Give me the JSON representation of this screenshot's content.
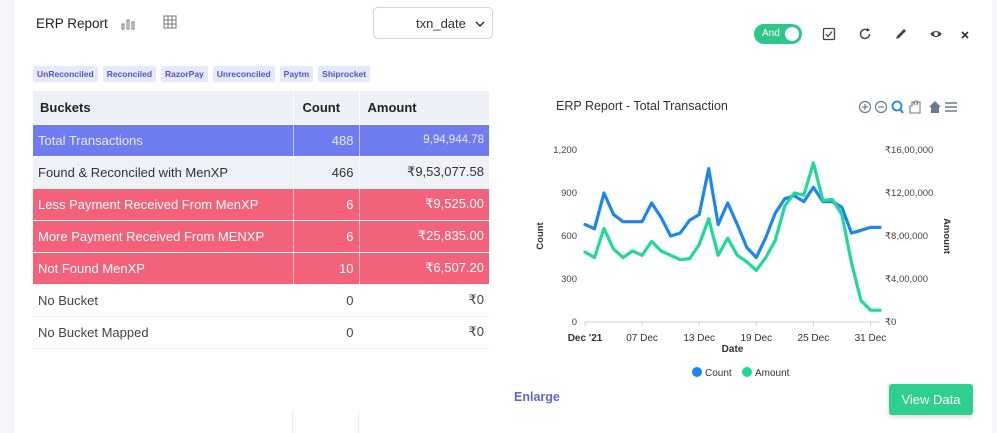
{
  "header": {
    "title": "ERP Report",
    "date_field": "txn_date",
    "toggle_label": "And"
  },
  "tags": [
    "UnReconciled",
    "Reconciled",
    "RazorPay",
    "Unreconciled",
    "Paytm",
    "Shiprocket"
  ],
  "table": {
    "headers": [
      "Buckets",
      "Count",
      "Amount"
    ],
    "rows": [
      {
        "label": "Total  Transactions",
        "count": "488",
        "amount": "9,94,944.78",
        "style": "total"
      },
      {
        "label": "Found & Reconciled with MenXP",
        "count": "466",
        "amount": "₹9,53,077.58",
        "style": "found"
      },
      {
        "label": "Less Payment Received From MenXP",
        "count": "6",
        "amount": "₹9,525.00",
        "style": "red"
      },
      {
        "label": "More Payment Received From MENXP",
        "count": "6",
        "amount": "₹25,835.00",
        "style": "red"
      },
      {
        "label": "Not Found MenXP",
        "count": "10",
        "amount": "₹6,507.20",
        "style": "red"
      },
      {
        "label": "No Bucket",
        "count": "0",
        "amount": "₹0",
        "style": "plain"
      },
      {
        "label": "No Bucket Mapped",
        "count": "0",
        "amount": "₹0",
        "style": "plain"
      }
    ]
  },
  "actions": {
    "enlarge": "Enlarge",
    "view_data": "View Data"
  },
  "chart_data": {
    "type": "line",
    "title": "ERP Report - Total Transaction",
    "xlabel": "Date",
    "ylabel": "Count",
    "y2label": "Amount",
    "x_ticks": [
      "Dec '21",
      "07 Dec",
      "13 Dec",
      "19 Dec",
      "25 Dec",
      "31 Dec"
    ],
    "y_ticks": [
      "0",
      "300",
      "600",
      "900",
      "1,200"
    ],
    "y2_ticks": [
      "₹0",
      "₹4,00,000",
      "₹8,00,000",
      "₹12,00,000",
      "₹16,00,000"
    ],
    "ylim": [
      0,
      1200
    ],
    "y2lim": [
      0,
      1600000
    ],
    "x_days": [
      1,
      2,
      3,
      4,
      5,
      6,
      7,
      8,
      9,
      10,
      11,
      12,
      13,
      14,
      15,
      16,
      17,
      18,
      19,
      20,
      21,
      22,
      23,
      24,
      25,
      26,
      27,
      28,
      29,
      30,
      31,
      32
    ],
    "series": [
      {
        "name": "Count",
        "axis": "left",
        "color": "#1c86ee",
        "values": [
          680,
          650,
          900,
          750,
          700,
          700,
          700,
          830,
          730,
          600,
          620,
          710,
          750,
          1070,
          680,
          830,
          680,
          520,
          450,
          590,
          760,
          860,
          880,
          840,
          940,
          840,
          840,
          800,
          620,
          640,
          660,
          660
        ]
      },
      {
        "name": "Amount",
        "axis": "right",
        "color": "#20d996",
        "values": [
          650000,
          600000,
          870000,
          680000,
          600000,
          660000,
          620000,
          750000,
          660000,
          620000,
          580000,
          590000,
          720000,
          960000,
          620000,
          780000,
          620000,
          560000,
          480000,
          600000,
          760000,
          1080000,
          1200000,
          1180000,
          1480000,
          1130000,
          1140000,
          1000000,
          550000,
          200000,
          110000,
          110000
        ]
      }
    ],
    "legend": [
      "Count",
      "Amount"
    ],
    "legend_position": "bottom"
  }
}
